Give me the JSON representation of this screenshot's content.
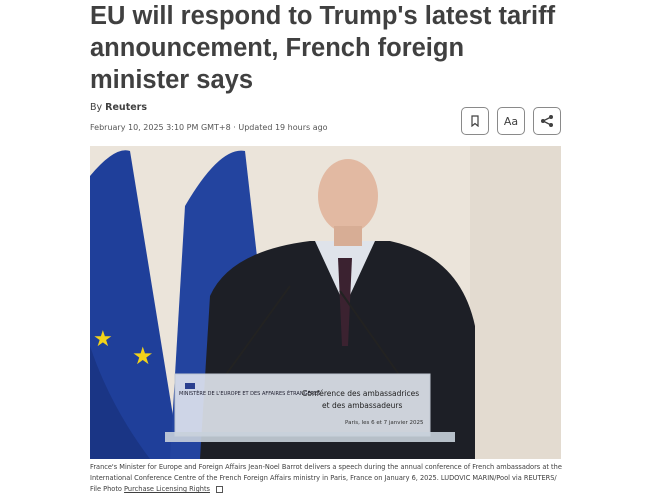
{
  "article": {
    "title": "EU will respond to Trump's latest tariff announcement, French foreign minister says",
    "byline_prefix": "By",
    "author": "Reuters",
    "date": "February 10, 2025 3:10 PM GMT+8 · Updated 19 hours ago"
  },
  "toolbar": {
    "bookmark_icon": "bookmark-icon",
    "text_size_label": "Aa",
    "share_icon": "share-icon"
  },
  "photo": {
    "lectern_logo": "MINISTÈRE DE L'EUROPE ET DES AFFAIRES ÉTRANGÈRES",
    "lectern_title": "Conférence des ambassadrices et des ambassadeurs",
    "lectern_dates": "Paris, les 6 et 7 janvier 2025"
  },
  "caption": {
    "text": "France's Minister for Europe and Foreign Affairs Jean-Noel Barrot delivers a speech during the annual conference of French ambassadors at the International Conference Centre of the French Foreign Affairs ministry in Paris, France on January 6, 2025. LUDOVIC MARIN/Pool via REUTERS/ File Photo ",
    "link": "Purchase Licensing Rights",
    "external_icon": "external-link-icon"
  }
}
